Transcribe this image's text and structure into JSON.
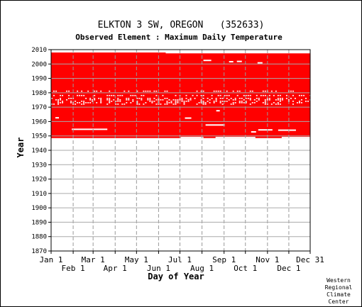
{
  "chart_data": {
    "type": "scatter",
    "title": "ELKTON 3 SW, OREGON   (352633)",
    "subtitle": "Observed Element : Maximum Daily Temperature",
    "xlabel": "Day of Year",
    "ylabel": "Year",
    "ylim": [
      1870,
      2010
    ],
    "xlim": [
      1,
      365
    ],
    "y_ticks": [
      1870,
      1880,
      1890,
      1900,
      1910,
      1920,
      1930,
      1940,
      1950,
      1960,
      1970,
      1980,
      1990,
      2000,
      2010
    ],
    "x_ticks_upper": [
      {
        "label": "Jan 1",
        "day": 1
      },
      {
        "label": "Mar 1",
        "day": 60
      },
      {
        "label": "May 1",
        "day": 121
      },
      {
        "label": "Jul 1",
        "day": 182
      },
      {
        "label": "Sep 1",
        "day": 244
      },
      {
        "label": "Nov 1",
        "day": 305
      },
      {
        "label": "Dec 31",
        "day": 365
      }
    ],
    "x_ticks_lower": [
      {
        "label": "Feb 1",
        "day": 32
      },
      {
        "label": "Apr 1",
        "day": 91
      },
      {
        "label": "Jun 1",
        "day": 152
      },
      {
        "label": "Aug 1",
        "day": 213
      },
      {
        "label": "Oct 1",
        "day": 274
      },
      {
        "label": "Dec 1",
        "day": 335
      }
    ],
    "grid": true,
    "series": [
      {
        "color": "#ff0000",
        "segments": [
          {
            "year_start": 1948.5,
            "year_end": 2008,
            "day_start": 1,
            "day_end": 365
          }
        ]
      }
    ],
    "gaps": [
      {
        "year": 1954.6,
        "day_start": 30,
        "day_end": 80
      },
      {
        "year": 1957.6,
        "day_start": 218,
        "day_end": 245
      },
      {
        "year": 1954.2,
        "day_start": 292,
        "day_end": 312
      },
      {
        "year": 1954.0,
        "day_start": 320,
        "day_end": 345
      },
      {
        "year": 1952.8,
        "day_start": 282,
        "day_end": 289
      },
      {
        "year": 2002.5,
        "day_start": 215,
        "day_end": 226
      },
      {
        "year": 2001.6,
        "day_start": 251,
        "day_end": 257
      },
      {
        "year": 2001.8,
        "day_start": 262,
        "day_end": 269
      },
      {
        "year": 2000.8,
        "day_start": 291,
        "day_end": 298
      },
      {
        "year": 1967.5,
        "day_start": 233,
        "day_end": 238
      },
      {
        "year": 1962.6,
        "day_start": 7,
        "day_end": 12
      },
      {
        "year": 1962.4,
        "day_start": 189,
        "day_end": 198
      }
    ],
    "sparse_rows": [
      1972,
      1973,
      1974,
      1975,
      1976,
      1978,
      1981
    ],
    "missing_tail": [
      {
        "year_start": 1948.5,
        "year_end": 1949.4,
        "day_start": 183,
        "day_end": 215
      },
      {
        "year_start": 1948.5,
        "year_end": 1949.4,
        "day_start": 232,
        "day_end": 288
      },
      {
        "year_start": 1948.5,
        "year_end": 1949.4,
        "day_start": 325,
        "day_end": 365
      },
      {
        "year_start": 2007.4,
        "year_end": 2008.0,
        "day_start": 162,
        "day_end": 365
      }
    ],
    "footer_note": [
      "Western",
      "Regional",
      "Climate",
      "Center"
    ]
  }
}
